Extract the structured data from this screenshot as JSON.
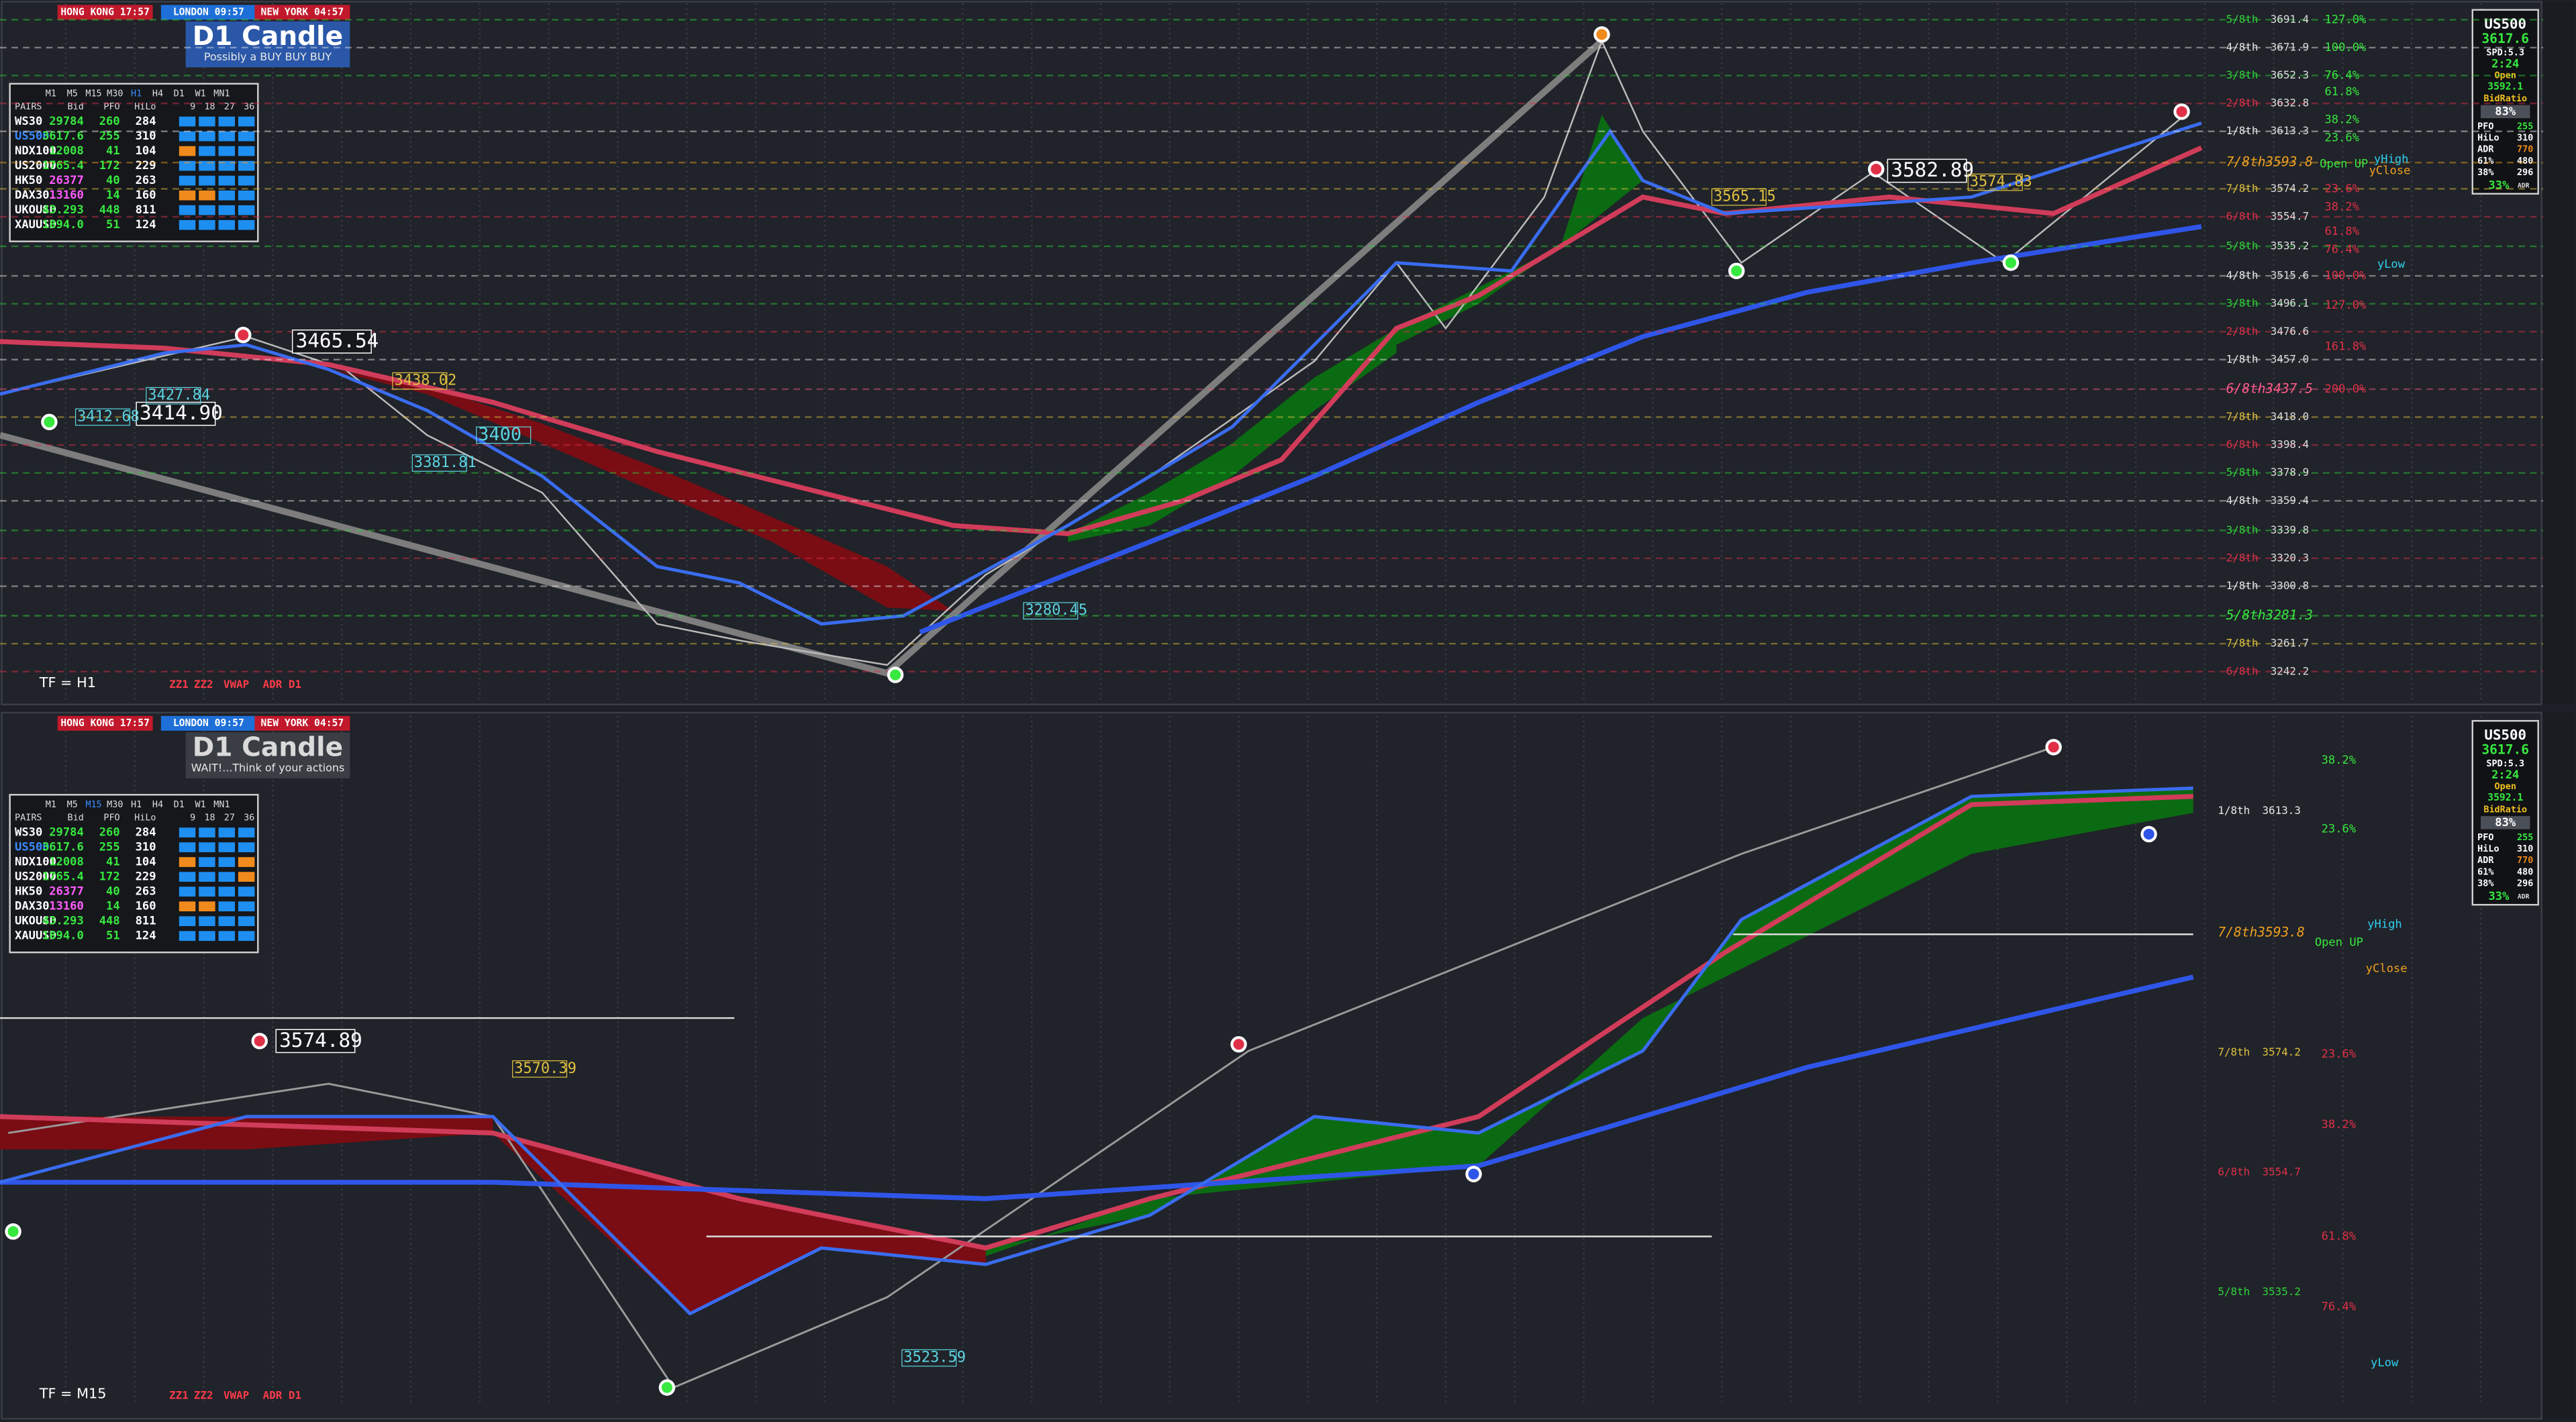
{
  "panels": [
    {
      "sessions": [
        "HONG KONG 17:57",
        "LONDON 09:57",
        "NEW YORK 04:57"
      ],
      "brand": "D1 Candle",
      "tagline": "Possibly a BUY BUY BUY",
      "table": {
        "timeframes": [
          "M1",
          "M5",
          "M15",
          "M30",
          "H1",
          "H4",
          "D1",
          "W1",
          "MN1"
        ],
        "columns": [
          "PAIRS",
          "Bid",
          "PFO",
          "HiLo",
          "9",
          "18",
          "27",
          "36"
        ],
        "rows": [
          [
            "WS30",
            "29784",
            "260",
            "284"
          ],
          [
            "US500",
            "3617.6",
            "255",
            "310"
          ],
          [
            "NDX100",
            "12008",
            "41",
            "104"
          ],
          [
            "US2000",
            "1765.4",
            "172",
            "229"
          ],
          [
            "HK50",
            "26377",
            "40",
            "263"
          ],
          [
            "DAX30",
            "13160",
            "14",
            "160"
          ],
          [
            "UKOUSD",
            "43.293",
            "448",
            "811"
          ],
          [
            "XAUUSD",
            "1894.0",
            "51",
            "124"
          ]
        ]
      },
      "info": [
        "US500",
        "3617.6",
        "SPD:5.3",
        "2:24",
        "Open",
        "3592.1",
        "BidRatio",
        "83%",
        "PFO",
        "255",
        "HiLo",
        "310",
        "ADR",
        "770",
        "61%",
        "480",
        "38%",
        "296",
        "33%",
        "ADR"
      ],
      "levels": [
        [
          "5/8th",
          "3691.4"
        ],
        [
          "4/8th",
          "3671.9"
        ],
        [
          "3/8th",
          "3652.3"
        ],
        [
          "2/8th",
          "3632.8"
        ],
        [
          "1/8th",
          "3613.3"
        ],
        [
          "7/8th",
          "3593.8"
        ],
        [
          "7/8th",
          "3574.2"
        ],
        [
          "6/8th",
          "3554.7"
        ],
        [
          "5/8th",
          "3535.2"
        ],
        [
          "4/8th",
          "3515.6"
        ],
        [
          "3/8th",
          "3496.1"
        ],
        [
          "2/8th",
          "3476.6"
        ],
        [
          "1/8th",
          "3457.0"
        ],
        [
          "6/8th",
          "3437.5"
        ],
        [
          "7/8th",
          "3418.0"
        ],
        [
          "6/8th",
          "3398.4"
        ],
        [
          "5/8th",
          "3378.9"
        ],
        [
          "4/8th",
          "3359.4"
        ],
        [
          "3/8th",
          "3339.8"
        ],
        [
          "2/8th",
          "3320.3"
        ],
        [
          "1/8th",
          "3300.8"
        ],
        [
          "5/8th",
          "3281.3"
        ],
        [
          "7/8th",
          "3261.7"
        ],
        [
          "6/8th",
          "3242.2"
        ]
      ],
      "percents": [
        "127.0%",
        "100.0%",
        "76.4%",
        "61.8%",
        "38.2%",
        "23.6%",
        "23.6%",
        "38.2%",
        "61.8%",
        "76.4%",
        "100.0%",
        "127.0%",
        "161.8%",
        "200.0%"
      ],
      "markers": [
        "yHigh",
        "Open UP",
        "yClose",
        "yLow"
      ],
      "annotations": [
        "3465.54",
        "3414.90",
        "3427.84",
        "3412.68",
        "3438.02",
        "3400",
        "3381.81",
        "3280.45",
        "3565.15",
        "3582.89",
        "3574.83"
      ],
      "tf": "TF = H1",
      "buttons": [
        "ZZ1",
        "ZZ2",
        "VWAP",
        "ADR D1"
      ]
    },
    {
      "sessions": [
        "HONG KONG 17:57",
        "LONDON 09:57",
        "NEW YORK 04:57"
      ],
      "brand": "D1 Candle",
      "tagline": "WAIT!...Think of your actions",
      "table": {
        "timeframes": [
          "M1",
          "M5",
          "M15",
          "M30",
          "H1",
          "H4",
          "D1",
          "W1",
          "MN1"
        ],
        "columns": [
          "PAIRS",
          "Bid",
          "PFO",
          "HiLo",
          "9",
          "18",
          "27",
          "36"
        ],
        "rows": [
          [
            "WS30",
            "29784",
            "260",
            "284"
          ],
          [
            "US500",
            "3617.6",
            "255",
            "310"
          ],
          [
            "NDX100",
            "12008",
            "41",
            "104"
          ],
          [
            "US2000",
            "1765.4",
            "172",
            "229"
          ],
          [
            "HK50",
            "26377",
            "40",
            "263"
          ],
          [
            "DAX30",
            "13160",
            "14",
            "160"
          ],
          [
            "UKOUSD",
            "43.293",
            "448",
            "811"
          ],
          [
            "XAUUSD",
            "1894.0",
            "51",
            "124"
          ]
        ]
      },
      "info": [
        "US500",
        "3617.6",
        "SPD:5.3",
        "2:24",
        "Open",
        "3592.1",
        "BidRatio",
        "83%",
        "PFO",
        "255",
        "HiLo",
        "310",
        "ADR",
        "770",
        "61%",
        "480",
        "38%",
        "296",
        "33%",
        "ADR"
      ],
      "levels": [
        [
          "1/8th",
          "3613.3"
        ],
        [
          "7/8th",
          "3593.8"
        ],
        [
          "7/8th",
          "3574.2"
        ],
        [
          "6/8th",
          "3554.7"
        ],
        [
          "5/8th",
          "3535.2"
        ]
      ],
      "percents": [
        "38.2%",
        "23.6%",
        "23.6%",
        "38.2%",
        "61.8%",
        "76.4%"
      ],
      "markers": [
        "yHigh",
        "Open UP",
        "yClose",
        "yLow"
      ],
      "annotations": [
        "3574.89",
        "3570.39",
        "3523.59"
      ],
      "tf": "TF = M15",
      "buttons": [
        "ZZ1",
        "ZZ2",
        "VWAP",
        "ADR D1"
      ]
    }
  ]
}
